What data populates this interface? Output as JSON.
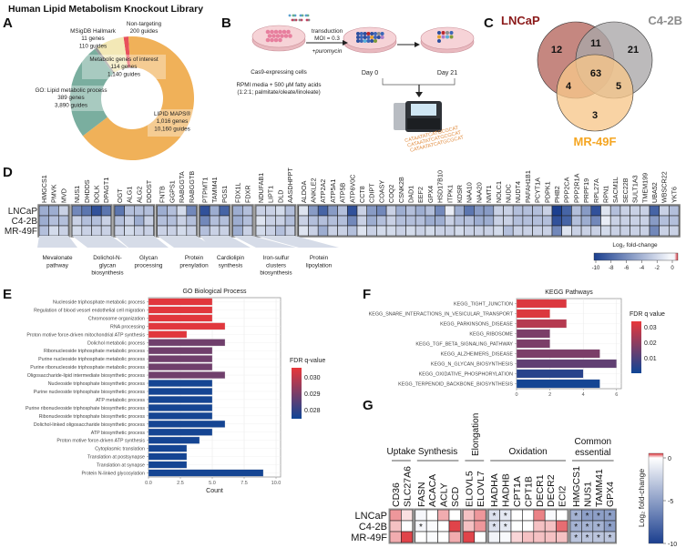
{
  "title": "Human Lipid Metabolism Knockout Library",
  "panel_labels": {
    "A": "A",
    "B": "B",
    "C": "C",
    "D": "D",
    "E": "E",
    "F": "F",
    "G": "G"
  },
  "panel_b": {
    "transduction": "transduction",
    "moi": "MOI = 0.3",
    "puromycin": "+puromycin",
    "cells": "Cas9-expressing cells",
    "media_line1": "RPMI media + 500 µM fatty acids",
    "media_line2": "(1:2:1; palmitate/oleate/linoleate)",
    "day0": "Day 0",
    "day21": "Day 21",
    "dna_text": "CATAATATCATGCGCAT"
  },
  "panel_c": {
    "sets": [
      {
        "name": "LNCaP",
        "color": "#b5655c",
        "label_color": "#8b1a1a"
      },
      {
        "name": "C4-2B",
        "color": "#a9a6a8",
        "label_color": "#8c8c8c"
      },
      {
        "name": "MR-49F",
        "color": "#f7c68a",
        "label_color": "#f5a623"
      }
    ],
    "regions": {
      "LNCaP_only": "12",
      "C4-2B_only": "21",
      "MR-49F_only": "3",
      "LNCaP_C4-2B": "11",
      "LNCaP_MR-49F": "4",
      "C4-2B_MR-49F": "5",
      "all": "63"
    }
  },
  "chart_data": [
    {
      "id": "A",
      "type": "pie",
      "donut": true,
      "segments": [
        {
          "label": "Non-targeting",
          "genes_text": "",
          "guides_text": "200 guides",
          "guides": 200,
          "color": "#e8505b"
        },
        {
          "label": "LIPID MAPS®",
          "genes_text": "1,016 genes",
          "guides_text": "10,160 guides",
          "genes": 1016,
          "guides": 10160,
          "color": "#f0b159"
        },
        {
          "label": "GO: Lipid metabolic process",
          "genes_text": "389 genes",
          "guides_text": "3,890 guides",
          "genes": 389,
          "guides": 3890,
          "color": "#7aae9f"
        },
        {
          "label": "MSigDB Hallmark",
          "genes_text": "11 genes",
          "guides_text": "110 guides",
          "genes": 11,
          "guides": 110,
          "color": "#9a9a9a"
        },
        {
          "label": "Metabolic genes of interest",
          "genes_text": "114 genes",
          "guides_text": "1,140 guides",
          "genes": 114,
          "guides": 1140,
          "color": "#f3e8b6"
        }
      ]
    },
    {
      "id": "D",
      "type": "heatmap",
      "rows": [
        "LNCaP",
        "C4-2B",
        "MR-49F"
      ],
      "groups": [
        {
          "label": "Mevalonate pathway",
          "label_lines": [
            "Mevalonate",
            "pathway"
          ],
          "genes": [
            "HMGCS1",
            "PMVK",
            "MVD"
          ]
        },
        {
          "label": "Dolichol-N-glycan biosynthesis",
          "label_lines": [
            "Dolichol-N-",
            "glycan",
            "biosynthesis"
          ],
          "genes": [
            "NUS1",
            "DHDDS",
            "DOLK",
            "DPAGT1"
          ]
        },
        {
          "label": "Glycan processing",
          "label_lines": [
            "Glycan",
            "processing"
          ],
          "genes": [
            "OGT",
            "ALG1",
            "ALG2",
            "DDOST"
          ]
        },
        {
          "label": "Protein prenylation",
          "label_lines": [
            "Protein",
            "prenylation"
          ],
          "genes": [
            "FNTB",
            "GGPS1",
            "RABGGTA",
            "RABGGTB"
          ]
        },
        {
          "label": "Cardiolipin synthesis",
          "label_lines": [
            "Cardiolipin",
            "synthesis"
          ],
          "genes": [
            "PTPMT1",
            "TAMM41",
            "PGS1"
          ]
        },
        {
          "label": "Iron-sulfur clusters biosynthesis",
          "label_lines": [
            "Iron-sulfur",
            "clusters",
            "biosynthesis"
          ],
          "genes": [
            "FDX1L",
            "FDXR"
          ]
        },
        {
          "label": "Protein lipoylation",
          "label_lines": [
            "Protein",
            "lipoylation"
          ],
          "genes": [
            "NDUFAB1",
            "LIPT1",
            "DLD",
            "AASDHPPT"
          ]
        },
        {
          "label": "",
          "label_lines": [],
          "genes": [
            "ALDOA",
            "ANKLE2",
            "ATP2A2",
            "ATP5A1",
            "ATP5B",
            "ATP6V0C",
            "CCT8",
            "CDIPT",
            "COASY",
            "COQ2",
            "CSNK2B",
            "DAD1",
            "EEF2",
            "GPX4",
            "HSD17B10",
            "ITPK1",
            "KDSR",
            "NAA10",
            "NAA20",
            "NMT1",
            "NOLC1",
            "NUDC",
            "NUDT4",
            "PAFAH1B1",
            "PCYT1A",
            "PDPK1",
            "PHB2",
            "PPP2CA",
            "PPP2R1A",
            "PRPF19",
            "RPL27A",
            "RPN1",
            "SACM1L",
            "SEC22B",
            "SULT1A3",
            "TMEM199",
            "UBA52",
            "WBSCR22",
            "YKT6"
          ]
        }
      ],
      "values": {
        "LNCaP": [
          -4,
          -4,
          -2,
          -6,
          -7,
          -9,
          -7,
          -7,
          -3,
          -3,
          -3,
          -4,
          -3,
          -1.5,
          -6,
          -9,
          -4,
          -8,
          -4,
          -3,
          -2,
          -2,
          -1.5,
          -3,
          -1,
          -5,
          -8,
          -5,
          -3,
          -9,
          -2,
          -5,
          -6,
          -2,
          -4,
          -3,
          -4,
          -3,
          -6,
          -0.5,
          -4,
          -7,
          -5,
          -5,
          -2,
          -2,
          -3,
          -3,
          -3,
          -2,
          -10,
          -8,
          -3,
          -5,
          -9,
          -1,
          -3,
          -2,
          -2,
          -2,
          -8,
          -2,
          -3
        ],
        "C4-2B": [
          -4,
          -3,
          -3,
          -2,
          -3,
          -3,
          -2,
          -3,
          -2,
          -4,
          -2,
          -3,
          -3,
          -2,
          -3,
          -6,
          -3,
          -3,
          -4,
          -3,
          -1,
          -2,
          -2,
          -3,
          -2,
          -3,
          -3,
          -3,
          -3,
          -6,
          -2,
          -4,
          -3,
          -2,
          -3,
          -3,
          -3,
          -4,
          -4,
          -2,
          -3,
          -3,
          -4,
          -4,
          -2,
          -2,
          -3,
          -3,
          -3,
          -3,
          -9,
          -8,
          -3,
          -4,
          -6,
          -0.5,
          -2,
          -2,
          -2,
          -2,
          -5,
          -3,
          -3
        ],
        "MR-49F": [
          -3,
          -1.5,
          -2,
          -1.5,
          -2,
          -2,
          -2,
          -2,
          -1.5,
          -2,
          -2,
          -2,
          -2,
          -1.5,
          -2,
          -3,
          -2,
          -2,
          -4,
          -2,
          -1.5,
          -2,
          -3,
          -2,
          -1,
          -2,
          -4,
          -2,
          -2,
          -3,
          -1,
          -2,
          -1.5,
          -1.5,
          -2,
          -1.5,
          -2,
          -1.5,
          -2,
          -2,
          -1.5,
          -2,
          -2,
          -2,
          -1.5,
          -3,
          -2,
          -2,
          -2,
          -2,
          -6,
          -1,
          -2,
          -2,
          -2,
          -1.5,
          -2,
          -2,
          -2,
          -2,
          -6,
          -2,
          -2
        ]
      },
      "legend_title": "Log₂ fold-change",
      "legend_ticks": [
        "-10",
        "-8",
        "-6",
        "-4",
        "-2",
        "0"
      ],
      "colors": {
        "low": "#1b3f8f",
        "mid": "#f4f6fb",
        "high": "#d7303a"
      }
    },
    {
      "id": "E",
      "type": "bar",
      "orientation": "horizontal",
      "title": "GO Biological Process",
      "xlabel": "Count",
      "xlim": [
        0,
        10
      ],
      "xticks": [
        "0.0",
        "2.5",
        "5.0",
        "7.5",
        "10.0"
      ],
      "grid": true,
      "legend_title": "FDR q-value",
      "legend_ticks": [
        "0.030",
        "0.029",
        "0.028"
      ],
      "legend_placement": "right",
      "categories": [
        "Nucleoside triphosphate metabolic process",
        "Regulation of blood vessel endothelial cell migration",
        "Chromosome organization",
        "RNA processing",
        "Proton motive force-driven mitochondrial ATP synthesis",
        "Dolichol metabolic process",
        "Ribonucleoside triphosphate metabolic process",
        "Purine nucleoside triphosphate metabolic process",
        "Purine ribonucleoside triphosphate metabolic process",
        "Oligosaccharide-lipid intermediate biosynthetic process",
        "Nucleoside triphosphate biosynthetic process",
        "Purine nucleoside triphosphate biosynthetic process",
        "ATP metabolic process",
        "Purine ribonucleoside triphosphate biosynthetic process",
        "Ribonucleoside triphosphate biosynthetic process",
        "Dolichol-linked oligosaccharide biosynthetic process",
        "ATP biosynthetic process",
        "Proton motive force-driven ATP synthesis",
        "Cytoplasmic translation",
        "Translation at postsynapse",
        "Translation at synapse",
        "Protein N-linked glycosylation"
      ],
      "values": [
        5,
        5,
        5,
        6,
        3,
        6,
        5,
        5,
        5,
        6,
        5,
        5,
        5,
        5,
        5,
        6,
        5,
        4,
        3,
        3,
        3,
        9
      ],
      "fdr": [
        0.0306,
        0.0306,
        0.0306,
        0.0306,
        0.0306,
        0.029,
        0.029,
        0.029,
        0.029,
        0.029,
        0.0277,
        0.0277,
        0.0277,
        0.0277,
        0.0277,
        0.0277,
        0.0277,
        0.0277,
        0.0277,
        0.0277,
        0.0277,
        0.0277
      ],
      "fdr_range": [
        0.0276,
        0.0307
      ],
      "colors": {
        "low": "#0e4596",
        "high": "#e8373a"
      }
    },
    {
      "id": "F",
      "type": "bar",
      "orientation": "horizontal",
      "title": "KEGG Pathways",
      "xlabel": "",
      "xlim": [
        0,
        6.3
      ],
      "xticks": [
        "0",
        "2",
        "4",
        "6"
      ],
      "grid": true,
      "legend_title": "FDR q value",
      "legend_ticks": [
        "0.03",
        "0.02",
        "0.01"
      ],
      "legend_placement": "right",
      "categories": [
        "KEGG_TIGHT_JUNCTION",
        "KEGG_SNARE_INTERACTIONS_IN_VESICULAR_TRANSPORT",
        "KEGG_PARKINSONS_DISEASE",
        "KEGG_RIBOSOME",
        "KEGG_TGF_BETA_SIGNALING_PATHWAY",
        "KEGG_ALZHEIMERS_DISEASE",
        "KEGG_N_GLYCAN_BIOSYNTHESIS",
        "KEGG_OXIDATIVE_PHOSPHORYLATION",
        "KEGG_TERPENOID_BACKBONE_BIOSYNTHESIS"
      ],
      "values": [
        3,
        2,
        3,
        2,
        2,
        5,
        6,
        4,
        5
      ],
      "fdr": [
        0.032,
        0.032,
        0.026,
        0.017,
        0.017,
        0.017,
        0.013,
        0.004,
        0.001
      ],
      "fdr_range": [
        0,
        0.034
      ],
      "colors": {
        "low": "#0e4596",
        "high": "#e8373a"
      }
    },
    {
      "id": "G",
      "type": "heatmap",
      "rows": [
        "LNCaP",
        "C4-2B",
        "MR-49F"
      ],
      "groups": [
        {
          "label_lines": [
            "Uptake"
          ],
          "genes": [
            "CD36",
            "SLC27A6"
          ]
        },
        {
          "label_lines": [
            "Synthesis"
          ],
          "genes": [
            "FASN",
            "ACACA",
            "ACLY",
            "SCD"
          ]
        },
        {
          "label_lines": [
            "Elongation"
          ],
          "vertical": true,
          "genes": [
            "ELOVL5",
            "ELOVL7"
          ]
        },
        {
          "label_lines": [
            "Oxidation"
          ],
          "genes": [
            "HADHA",
            "HADHB",
            "CPT1A",
            "CPT1B",
            "DECR1",
            "DECR2",
            "ECI2"
          ]
        },
        {
          "label_lines": [
            "Common",
            "essential"
          ],
          "genes": [
            "HMGCS1",
            "NUS1",
            "TAMM41",
            "GPX4"
          ]
        }
      ],
      "values": {
        "LNCaP": [
          0.5,
          0.15,
          -0.4,
          0,
          0.4,
          0,
          0.3,
          0.5,
          -1.6,
          -1.2,
          0,
          0,
          0.6,
          -0.3,
          0,
          -4,
          -5,
          -5,
          -5
        ],
        "C4-2B": [
          0.3,
          0,
          -0.4,
          -0.2,
          0,
          0.9,
          0.3,
          0.5,
          -1.6,
          -1.2,
          0,
          0,
          0.3,
          0.3,
          0.7,
          -4,
          -4,
          -4,
          -5
        ],
        "MR-49F": [
          0.4,
          0.9,
          0,
          -0.2,
          0,
          0.4,
          0.9,
          0,
          -0.6,
          -0.3,
          0.2,
          0.3,
          0.3,
          0.3,
          0.3,
          -3,
          -3,
          -3,
          -3
        ]
      },
      "significant": {
        "LNCaP": [
          0,
          0,
          0,
          0,
          0,
          0,
          0,
          0,
          1,
          1,
          0,
          0,
          0,
          0,
          0,
          1,
          1,
          1,
          1
        ],
        "C4-2B": [
          0,
          0,
          1,
          0,
          0,
          0,
          0,
          0,
          1,
          1,
          0,
          0,
          0,
          0,
          0,
          1,
          1,
          1,
          1
        ],
        "MR-49F": [
          0,
          0,
          0,
          0,
          0,
          0,
          0,
          0,
          0,
          0,
          0,
          0,
          0,
          0,
          0,
          1,
          1,
          1,
          1
        ]
      },
      "star": "*",
      "legend_title": "Log₂ fold-change",
      "legend_ticks": [
        "0",
        "-5",
        "-10"
      ],
      "colors": {
        "low": "#1b3f8f",
        "mid": "#ffffff",
        "high": "#dc2f36"
      }
    }
  ]
}
